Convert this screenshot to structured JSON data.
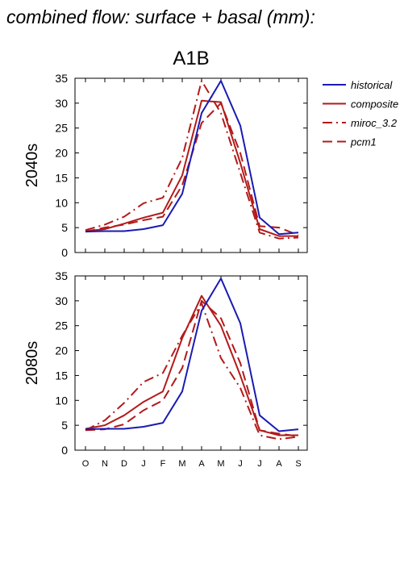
{
  "figure": {
    "title": "combined flow: surface + basal (mm):",
    "subtitle": "A1B"
  },
  "colors": {
    "historical": "#1a1ab3",
    "future": "#b31a1a",
    "axis": "#000000"
  },
  "legend": {
    "placement": "right",
    "items": [
      {
        "name": "historical",
        "style": "solid",
        "color": "#1a1ab3"
      },
      {
        "name": "composite",
        "style": "solid",
        "color": "#b31a1a"
      },
      {
        "name": "miroc_3.2",
        "style": "dashdot",
        "color": "#b31a1a"
      },
      {
        "name": "pcm1",
        "style": "dashed",
        "color": "#b31a1a"
      }
    ]
  },
  "chart_data": [
    {
      "type": "line",
      "row_label": "2040s",
      "categories": [
        "O",
        "N",
        "D",
        "J",
        "F",
        "M",
        "A",
        "M",
        "J",
        "J",
        "A",
        "S"
      ],
      "ylim": [
        0,
        35
      ],
      "yticks": [
        0,
        5,
        10,
        15,
        20,
        25,
        30,
        35
      ],
      "grid": false,
      "series": [
        {
          "name": "historical",
          "values": [
            4.2,
            4.3,
            4.3,
            4.7,
            5.5,
            11.8,
            28.0,
            34.5,
            25.5,
            7.0,
            3.7,
            4.0
          ]
        },
        {
          "name": "composite",
          "values": [
            4.3,
            4.7,
            5.8,
            7.0,
            8.0,
            15.5,
            30.5,
            30.2,
            18.0,
            4.7,
            3.3,
            3.3
          ]
        },
        {
          "name": "miroc_3.2",
          "values": [
            4.5,
            5.6,
            7.2,
            9.9,
            11.0,
            19.0,
            34.5,
            28.0,
            16.0,
            4.0,
            2.8,
            3.0
          ]
        },
        {
          "name": "pcm1",
          "values": [
            4.2,
            5.0,
            5.6,
            6.5,
            7.2,
            13.5,
            26.0,
            30.0,
            20.0,
            5.3,
            5.0,
            3.5
          ]
        }
      ]
    },
    {
      "type": "line",
      "row_label": "2080s",
      "categories": [
        "O",
        "N",
        "D",
        "J",
        "F",
        "M",
        "A",
        "M",
        "J",
        "J",
        "A",
        "S"
      ],
      "ylim": [
        0,
        35
      ],
      "yticks": [
        0,
        5,
        10,
        15,
        20,
        25,
        30,
        35
      ],
      "grid": false,
      "series": [
        {
          "name": "historical",
          "values": [
            4.2,
            4.3,
            4.3,
            4.7,
            5.5,
            11.8,
            28.0,
            34.5,
            25.5,
            7.0,
            3.8,
            4.2
          ]
        },
        {
          "name": "composite",
          "values": [
            4.3,
            5.0,
            7.0,
            9.7,
            11.8,
            22.5,
            31.0,
            25.0,
            15.0,
            4.0,
            3.0,
            3.0
          ]
        },
        {
          "name": "miroc_3.2",
          "values": [
            4.0,
            6.0,
            9.5,
            13.7,
            15.5,
            23.0,
            29.5,
            18.5,
            12.5,
            3.0,
            2.2,
            2.7
          ]
        },
        {
          "name": "pcm1",
          "values": [
            4.0,
            4.2,
            5.2,
            8.0,
            10.0,
            16.5,
            30.0,
            26.5,
            17.5,
            4.0,
            3.3,
            2.8
          ]
        }
      ]
    }
  ]
}
